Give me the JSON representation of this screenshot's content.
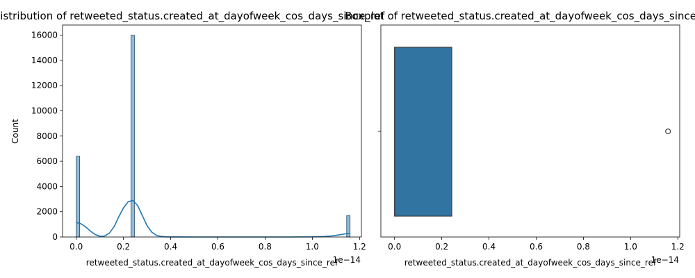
{
  "chart_data": [
    {
      "type": "bar",
      "subtype": "histogram_with_kde",
      "title": "Distribution of retweeted_status.created_at_dayofweek_cos_days_since_ref",
      "xlabel": "retweeted_status.created_at_dayofweek_cos_days_since_ref",
      "ylabel": "Count",
      "x_offset_text": "1e−14",
      "xlim": [
        -0.058,
        1.208
      ],
      "ylim": [
        0,
        16800
      ],
      "xticks": [
        0.0,
        0.2,
        0.4,
        0.6,
        0.8,
        1.0,
        1.2
      ],
      "xtick_labels": [
        "0.0",
        "0.2",
        "0.4",
        "0.6",
        "0.8",
        "1.0",
        "1.2"
      ],
      "yticks": [
        0,
        2000,
        4000,
        6000,
        8000,
        10000,
        12000,
        14000,
        16000
      ],
      "ytick_labels": [
        "0",
        "2000",
        "4000",
        "6000",
        "8000",
        "10000",
        "12000",
        "14000",
        "16000"
      ],
      "bar_color": "#1f77b4",
      "bar_opacity": 0.5,
      "kde_color": "#1f77b4",
      "bins": [
        {
          "x0": 0.0,
          "x1": 0.0145,
          "count": 6400
        },
        {
          "x0": 0.232,
          "x1": 0.2465,
          "count": 16000
        },
        {
          "x0": 1.1455,
          "x1": 1.16,
          "count": 1700
        }
      ],
      "kde": {
        "x": [
          0.0,
          0.02,
          0.04,
          0.06,
          0.08,
          0.1,
          0.12,
          0.14,
          0.16,
          0.18,
          0.2,
          0.22,
          0.24,
          0.26,
          0.28,
          0.3,
          0.32,
          0.34,
          0.36,
          0.38,
          0.4,
          0.5,
          0.6,
          0.7,
          0.8,
          0.9,
          1.0,
          1.05,
          1.08,
          1.1,
          1.12,
          1.14,
          1.16
        ],
        "y": [
          1150,
          1050,
          800,
          470,
          200,
          60,
          80,
          300,
          800,
          1600,
          2300,
          2800,
          2900,
          2500,
          1700,
          900,
          380,
          130,
          40,
          12,
          5,
          0,
          0,
          0,
          0,
          0,
          10,
          40,
          80,
          130,
          190,
          250,
          290
        ]
      }
    },
    {
      "type": "boxplot",
      "title": "Boxplot of retweeted_status.created_at_dayofweek_cos_days_since_ref",
      "xlabel": "retweeted_status.created_at_dayofweek_cos_days_since_ref",
      "x_offset_text": "1e−14",
      "xlim": [
        -0.058,
        1.208
      ],
      "xticks": [
        0.0,
        0.2,
        0.4,
        0.6,
        0.8,
        1.0,
        1.2
      ],
      "xtick_labels": [
        "0.0",
        "0.2",
        "0.4",
        "0.6",
        "0.8",
        "1.0",
        "1.2"
      ],
      "box_color": "#3274a1",
      "q1": 0.0,
      "median": 0.0,
      "q3": 0.2425,
      "whisker_low": 0.0,
      "whisker_high": 0.2425,
      "outliers": [
        1.1585
      ]
    }
  ]
}
